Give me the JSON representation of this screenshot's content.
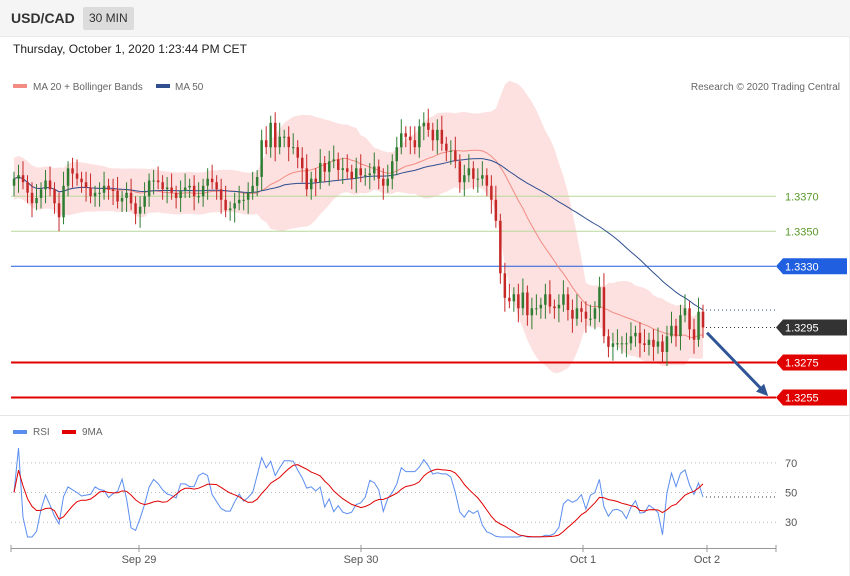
{
  "header": {
    "symbol": "USD/CAD",
    "timeframe": "30 MIN"
  },
  "datetime": "Thursday, October 1, 2020 1:23:44 PM CET",
  "legend": {
    "bollinger": {
      "label": "MA 20 + Bollinger Bands",
      "color": "#f28b82"
    },
    "ma50": {
      "label": "MA 50",
      "color": "#2f4f8f"
    }
  },
  "credit": "Research © 2020 Trading Central",
  "rsi_legend": {
    "rsi": {
      "label": "RSI",
      "color": "#5b8def"
    },
    "ma9": {
      "label": "9MA",
      "color": "#e00000"
    }
  },
  "colors": {
    "up": "#2e7d32",
    "down": "#c62828",
    "support": "#e00000",
    "pivot": "#1f5fe0",
    "resistance": "#b9d99a",
    "last": "#333333",
    "band": "#fde0e0",
    "arrow": "#2f5597"
  },
  "chart_data": [
    {
      "type": "candlestick",
      "ylim": [
        1.3245,
        1.3425
      ],
      "x_ticks": [
        "Sep 29",
        "Sep 30",
        "Oct 1",
        "Oct 2"
      ],
      "last_price": 1.3295,
      "levels": [
        {
          "value": 1.337,
          "label": "1.3370",
          "kind": "resistance"
        },
        {
          "value": 1.335,
          "label": "1.3350",
          "kind": "resistance"
        },
        {
          "value": 1.333,
          "label": "1.3330",
          "kind": "pivot"
        },
        {
          "value": 1.3295,
          "label": "1.3295",
          "kind": "last"
        },
        {
          "value": 1.3275,
          "label": "1.3275",
          "kind": "support"
        },
        {
          "value": 1.3255,
          "label": "1.3255",
          "kind": "support"
        }
      ],
      "forecast": {
        "from": 1.3292,
        "to": 1.3256,
        "direction": "down"
      },
      "close": [
        1.338,
        1.3382,
        1.3378,
        1.3372,
        1.3366,
        1.3369,
        1.3374,
        1.3379,
        1.3374,
        1.3366,
        1.3358,
        1.3376,
        1.3386,
        1.3383,
        1.338,
        1.3378,
        1.3375,
        1.337,
        1.3372,
        1.3372,
        1.3376,
        1.3374,
        1.3373,
        1.3367,
        1.3369,
        1.3372,
        1.3366,
        1.336,
        1.3364,
        1.337,
        1.3379,
        1.3379,
        1.3378,
        1.3374,
        1.3375,
        1.3372,
        1.3369,
        1.3373,
        1.3375,
        1.3376,
        1.337,
        1.337,
        1.3376,
        1.338,
        1.3378,
        1.3374,
        1.3368,
        1.3362,
        1.3363,
        1.3366,
        1.3368,
        1.3368,
        1.3372,
        1.3376,
        1.3381,
        1.3402,
        1.3398,
        1.3412,
        1.3398,
        1.3404,
        1.3404,
        1.3398,
        1.3398,
        1.3392,
        1.3386,
        1.3374,
        1.338,
        1.3378,
        1.3389,
        1.3384,
        1.339,
        1.3391,
        1.3385,
        1.3386,
        1.3384,
        1.338,
        1.3386,
        1.3382,
        1.3382,
        1.3383,
        1.3387,
        1.338,
        1.3376,
        1.338,
        1.339,
        1.3398,
        1.3406,
        1.3404,
        1.3402,
        1.3398,
        1.341,
        1.3412,
        1.3408,
        1.3402,
        1.3408,
        1.34,
        1.3396,
        1.3396,
        1.339,
        1.3378,
        1.3382,
        1.3386,
        1.338,
        1.338,
        1.3382,
        1.3376,
        1.3368,
        1.3356,
        1.3326,
        1.3312,
        1.331,
        1.3314,
        1.3306,
        1.3315,
        1.3302,
        1.3306,
        1.3306,
        1.3308,
        1.3314,
        1.3307,
        1.3306,
        1.3308,
        1.3314,
        1.3305,
        1.33,
        1.3306,
        1.3304,
        1.33,
        1.33,
        1.3306,
        1.3318,
        1.329,
        1.3284,
        1.3286,
        1.3286,
        1.3286,
        1.3286,
        1.329,
        1.3292,
        1.3286,
        1.3285,
        1.3288,
        1.3284,
        1.3287,
        1.3281,
        1.329,
        1.3296,
        1.329,
        1.3302,
        1.3306,
        1.3294,
        1.3288,
        1.3304,
        1.3295
      ]
    },
    {
      "type": "line",
      "title": "RSI",
      "ylim": [
        18,
        82
      ],
      "y_ticks": [
        70,
        50,
        30
      ],
      "last_value": 47
    }
  ]
}
